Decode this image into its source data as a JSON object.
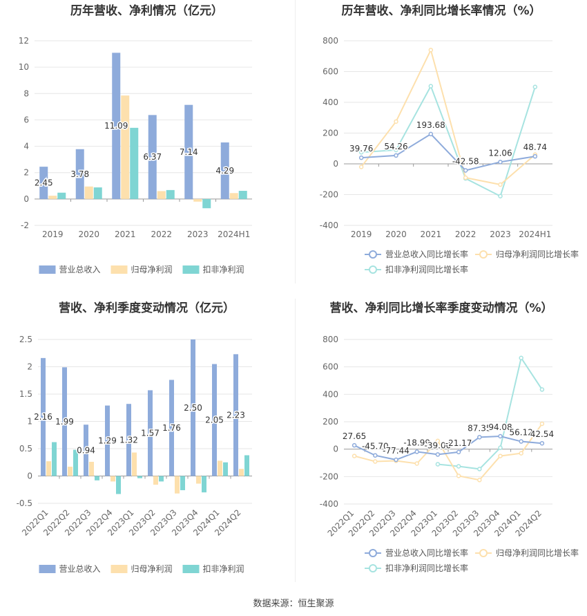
{
  "source_label": "数据来源：恒生聚源",
  "colors": {
    "revenue": "#8eabdb",
    "net_profit": "#fde0ad",
    "deducted_profit": "#7fd5d3",
    "line_revenue": "#8eabdb",
    "line_net_profit": "#fde0ad",
    "line_deducted": "#a6e3e0"
  },
  "chart_data": [
    {
      "type": "bar",
      "title": "历年营收、净利情况（亿元）",
      "categories": [
        "2019",
        "2020",
        "2021",
        "2022",
        "2023",
        "2024H1"
      ],
      "series": [
        {
          "name": "营业总收入",
          "values": [
            2.45,
            3.78,
            11.09,
            6.37,
            7.14,
            4.29
          ]
        },
        {
          "name": "归母净利润",
          "values": [
            0.25,
            0.95,
            7.85,
            0.6,
            -0.2,
            0.45
          ]
        },
        {
          "name": "扣非净利润",
          "values": [
            0.48,
            0.88,
            5.4,
            0.68,
            -0.7,
            0.62
          ]
        }
      ],
      "data_labels": [
        "2.45",
        "3.78",
        "11.09",
        "6.37",
        "7.14",
        "4.29"
      ],
      "ylim": [
        -2,
        12
      ],
      "yticks": [
        "-2",
        "0",
        "2",
        "4",
        "6",
        "8",
        "10",
        "12"
      ],
      "legend_position": "bottom",
      "grid": true
    },
    {
      "type": "line",
      "title": "历年营收、净利同比增长率情况（%）",
      "categories": [
        "2019",
        "2020",
        "2021",
        "2022",
        "2023",
        "2024H1"
      ],
      "series": [
        {
          "name": "营业总收入同比增长率",
          "values": [
            39.76,
            54.26,
            193.68,
            -42.58,
            12.06,
            48.74
          ]
        },
        {
          "name": "归母净利润同比增长率",
          "values": [
            -20,
            275,
            740,
            -90,
            -135,
            60
          ]
        },
        {
          "name": "扣非净利润同比增长率",
          "values": [
            75,
            90,
            505,
            -95,
            -210,
            500
          ]
        }
      ],
      "data_labels": [
        "39.76",
        "54.26",
        "193.68",
        "-42.58",
        "12.06",
        "48.74"
      ],
      "ylim": [
        -400,
        800
      ],
      "yticks": [
        "-400",
        "-200",
        "0",
        "200",
        "400",
        "600",
        "800"
      ],
      "legend_position": "bottom",
      "grid": true
    },
    {
      "type": "bar",
      "title": "营收、净利季度变动情况（亿元）",
      "categories": [
        "2022Q1",
        "2022Q2",
        "2022Q3",
        "2022Q4",
        "2023Q1",
        "2023Q2",
        "2023Q3",
        "2023Q4",
        "2024Q1",
        "2024Q2"
      ],
      "series": [
        {
          "name": "营业总收入",
          "values": [
            2.16,
            1.99,
            0.94,
            1.29,
            1.32,
            1.57,
            1.76,
            2.5,
            2.05,
            2.23
          ]
        },
        {
          "name": "归母净利润",
          "values": [
            0.27,
            0.17,
            0.26,
            -0.1,
            0.43,
            -0.16,
            -0.32,
            -0.14,
            0.28,
            0.13
          ]
        },
        {
          "name": "扣非净利润",
          "values": [
            0.62,
            0.48,
            -0.08,
            -0.33,
            -0.04,
            -0.1,
            -0.26,
            -0.3,
            0.25,
            0.38
          ]
        }
      ],
      "data_labels": [
        "2.16",
        "1.99",
        "0.94",
        "1.29",
        "1.32",
        "1.57",
        "1.76",
        "2.50",
        "2.05",
        "2.23"
      ],
      "ylim": [
        -0.5,
        2.5
      ],
      "yticks": [
        "-0.5",
        "0",
        "0.5",
        "1",
        "1.5",
        "2",
        "2.5"
      ],
      "legend_position": "bottom",
      "grid": true
    },
    {
      "type": "line",
      "title": "营收、净利同比增长率季度变动情况（%）",
      "categories": [
        "2022Q1",
        "2022Q2",
        "2022Q3",
        "2022Q4",
        "2023Q1",
        "2023Q2",
        "2023Q3",
        "2023Q4",
        "2024Q1",
        "2024Q2"
      ],
      "series": [
        {
          "name": "营业总收入同比增长率",
          "values": [
            27.65,
            -45.7,
            -77.44,
            -18.99,
            -39.0,
            -21.17,
            87.35,
            94.08,
            56.12,
            42.54
          ]
        },
        {
          "name": "归母净利润同比增长率",
          "values": [
            -50,
            -90,
            -85,
            -105,
            60,
            -195,
            -225,
            -50,
            -30,
            185
          ]
        },
        {
          "name": "扣非净利润同比增长率",
          "values": [
            null,
            null,
            null,
            null,
            -110,
            -125,
            -145,
            10,
            665,
            435
          ]
        }
      ],
      "data_labels": [
        "27.65",
        "-45.70",
        "-77.44",
        "-18.99",
        "-39.00",
        "-21.17",
        "87.35",
        "94.08",
        "56.12",
        "42.54"
      ],
      "ylim": [
        -400,
        800
      ],
      "yticks": [
        "-400",
        "-200",
        "0",
        "200",
        "400",
        "600",
        "800"
      ],
      "legend_position": "bottom",
      "grid": true
    }
  ]
}
